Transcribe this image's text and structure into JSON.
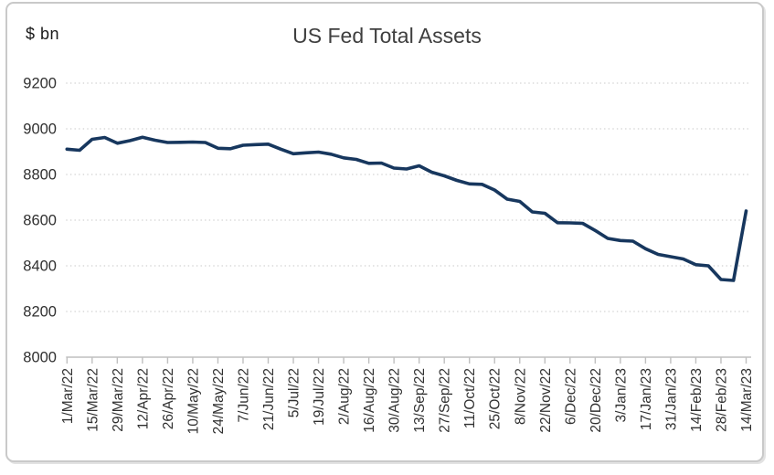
{
  "figure": {
    "unit_label": "$ bn",
    "title": "US Fed Total Assets"
  },
  "chart_data": {
    "type": "line",
    "title": "US Fed Total Assets",
    "ylabel": "$ bn",
    "xlabel": "",
    "ylim": [
      8000,
      9200
    ],
    "y_ticks": [
      8000,
      8200,
      8400,
      8600,
      8800,
      9200,
      9000
    ],
    "grid": "horizontal-dotted",
    "legend": "none",
    "series_name": "US Fed Total Assets ($ bn)",
    "line_color": "#17375E",
    "grid_color": "#d9d9d9",
    "axis_color": "#bfbfbf",
    "x_tick_every": 2,
    "x": [
      "1/Mar/22",
      "8/Mar/22",
      "15/Mar/22",
      "22/Mar/22",
      "29/Mar/22",
      "5/Apr/22",
      "12/Apr/22",
      "19/Apr/22",
      "26/Apr/22",
      "3/May/22",
      "10/May/22",
      "17/May/22",
      "24/May/22",
      "31/May/22",
      "7/Jun/22",
      "14/Jun/22",
      "21/Jun/22",
      "28/Jun/22",
      "5/Jul/22",
      "12/Jul/22",
      "19/Jul/22",
      "26/Jul/22",
      "2/Aug/22",
      "9/Aug/22",
      "16/Aug/22",
      "23/Aug/22",
      "30/Aug/22",
      "6/Sep/22",
      "13/Sep/22",
      "20/Sep/22",
      "27/Sep/22",
      "4/Oct/22",
      "11/Oct/22",
      "18/Oct/22",
      "25/Oct/22",
      "1/Nov/22",
      "8/Nov/22",
      "15/Nov/22",
      "22/Nov/22",
      "29/Nov/22",
      "6/Dec/22",
      "13/Dec/22",
      "20/Dec/22",
      "27/Dec/22",
      "3/Jan/23",
      "10/Jan/23",
      "17/Jan/23",
      "24/Jan/23",
      "31/Jan/23",
      "7/Feb/23",
      "14/Feb/23",
      "21/Feb/23",
      "28/Feb/23",
      "7/Mar/23",
      "14/Mar/23"
    ],
    "x_tick_labels": [
      "1/Mar/22",
      "15/Mar/22",
      "29/Mar/22",
      "12/Apr/22",
      "26/Apr/22",
      "10/May/22",
      "24/May/22",
      "7/Jun/22",
      "21/Jun/22",
      "5/Jul/22",
      "19/Jul/22",
      "2/Aug/22",
      "16/Aug/22",
      "30/Aug/22",
      "13/Sep/22",
      "27/Sep/22",
      "11/Oct/22",
      "25/Oct/22",
      "8/Nov/22",
      "22/Nov/22",
      "6/Dec/22",
      "20/Dec/22",
      "3/Jan/23",
      "17/Jan/23",
      "31/Jan/23",
      "14/Feb/23",
      "28/Feb/23",
      "14/Mar/23"
    ],
    "values": [
      8911,
      8906,
      8954,
      8962,
      8937,
      8948,
      8963,
      8950,
      8940,
      8941,
      8942,
      8940,
      8915,
      8913,
      8928,
      8931,
      8933,
      8911,
      8891,
      8895,
      8898,
      8889,
      8873,
      8866,
      8849,
      8850,
      8828,
      8824,
      8838,
      8810,
      8794,
      8774,
      8759,
      8757,
      8732,
      8692,
      8682,
      8636,
      8630,
      8589,
      8588,
      8586,
      8555,
      8520,
      8511,
      8508,
      8475,
      8450,
      8440,
      8430,
      8405,
      8400,
      8340,
      8336,
      8640
    ]
  }
}
